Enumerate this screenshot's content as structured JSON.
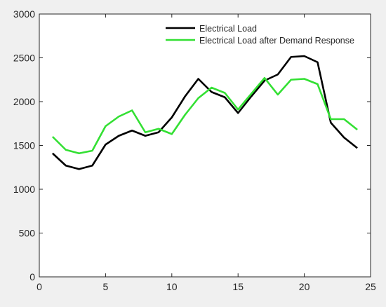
{
  "chart_data": {
    "type": "line",
    "title": "",
    "xlabel": "",
    "ylabel": "",
    "xlim": [
      0,
      25
    ],
    "ylim": [
      0,
      3000
    ],
    "x_ticks": [
      "0",
      "5",
      "10",
      "15",
      "20",
      "25"
    ],
    "y_ticks": [
      "0",
      "500",
      "1000",
      "1500",
      "2000",
      "2500",
      "3000"
    ],
    "grid": false,
    "legend_position": "top-right",
    "x": [
      1,
      2,
      3,
      4,
      5,
      6,
      7,
      8,
      9,
      10,
      11,
      12,
      13,
      14,
      15,
      16,
      17,
      18,
      19,
      20,
      21,
      22,
      23,
      24
    ],
    "series": [
      {
        "name": "Electrical Load",
        "color": "#000000",
        "values": [
          1410,
          1270,
          1230,
          1270,
          1510,
          1610,
          1670,
          1610,
          1650,
          1820,
          2060,
          2260,
          2110,
          2050,
          1870,
          2060,
          2240,
          2310,
          2510,
          2520,
          2450,
          1760,
          1590,
          1470
        ]
      },
      {
        "name": "Electrical Load after Demand Response",
        "color": "#33e033",
        "values": [
          1600,
          1450,
          1410,
          1440,
          1720,
          1830,
          1900,
          1650,
          1690,
          1630,
          1850,
          2040,
          2160,
          2100,
          1910,
          2090,
          2270,
          2080,
          2250,
          2260,
          2200,
          1800,
          1800,
          1680
        ]
      }
    ]
  }
}
